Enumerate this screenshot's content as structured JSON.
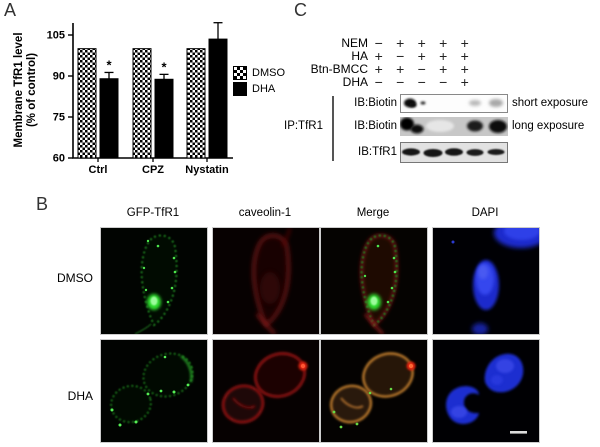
{
  "figure": {
    "panels": [
      "A",
      "B",
      "C"
    ]
  },
  "panelA": {
    "label": "A"
  },
  "chart_data": {
    "type": "bar",
    "title": "",
    "xlabel": "",
    "ylabel_lines": [
      "Membrane TfR1 level",
      "(% of control)"
    ],
    "categories": [
      "Ctrl",
      "CPZ",
      "Nystatin"
    ],
    "series": [
      {
        "name": "DMSO",
        "values": [
          100,
          100,
          100
        ],
        "errors": [
          0,
          0,
          0
        ],
        "fill": "checker"
      },
      {
        "name": "DHA",
        "values": [
          89,
          88.8,
          103.5
        ],
        "errors": [
          2.3,
          1.8,
          6
        ],
        "fill": "black"
      }
    ],
    "significance": [
      "*",
      "*",
      ""
    ],
    "yticks": [
      60,
      75,
      90,
      105
    ],
    "ylim": [
      60,
      112
    ],
    "baseline": 60,
    "grid": false,
    "legend_position": "right"
  },
  "panelC": {
    "label": "C",
    "treatments": [
      {
        "name": "NEM",
        "signs": [
          "−",
          "+",
          "+",
          "+",
          "+"
        ]
      },
      {
        "name": "HA",
        "signs": [
          "+",
          "−",
          "+",
          "+",
          "+"
        ]
      },
      {
        "name": "Btn-BMCC",
        "signs": [
          "+",
          "+",
          "−",
          "+",
          "+"
        ]
      },
      {
        "name": "DHA",
        "signs": [
          "−",
          "−",
          "−",
          "−",
          "+"
        ]
      }
    ],
    "ip_label": "IP:TfR1",
    "blots": [
      {
        "label": "IB:Biotin",
        "annotation": "short exposure"
      },
      {
        "label": "IB:Biotin",
        "annotation": "long exposure"
      },
      {
        "label": "IB:TfR1",
        "annotation": ""
      }
    ]
  },
  "panelB": {
    "label": "B",
    "columns": [
      "GFP-TfR1",
      "caveolin-1",
      "Merge",
      "DAPI"
    ],
    "rows": [
      "DMSO",
      "DHA"
    ],
    "colors": {
      "gfp_green": "#2edd2e",
      "caveolin_red": "#b01515",
      "merge_orange": "#b5762a",
      "dapi_blue": "#2433d8"
    }
  }
}
